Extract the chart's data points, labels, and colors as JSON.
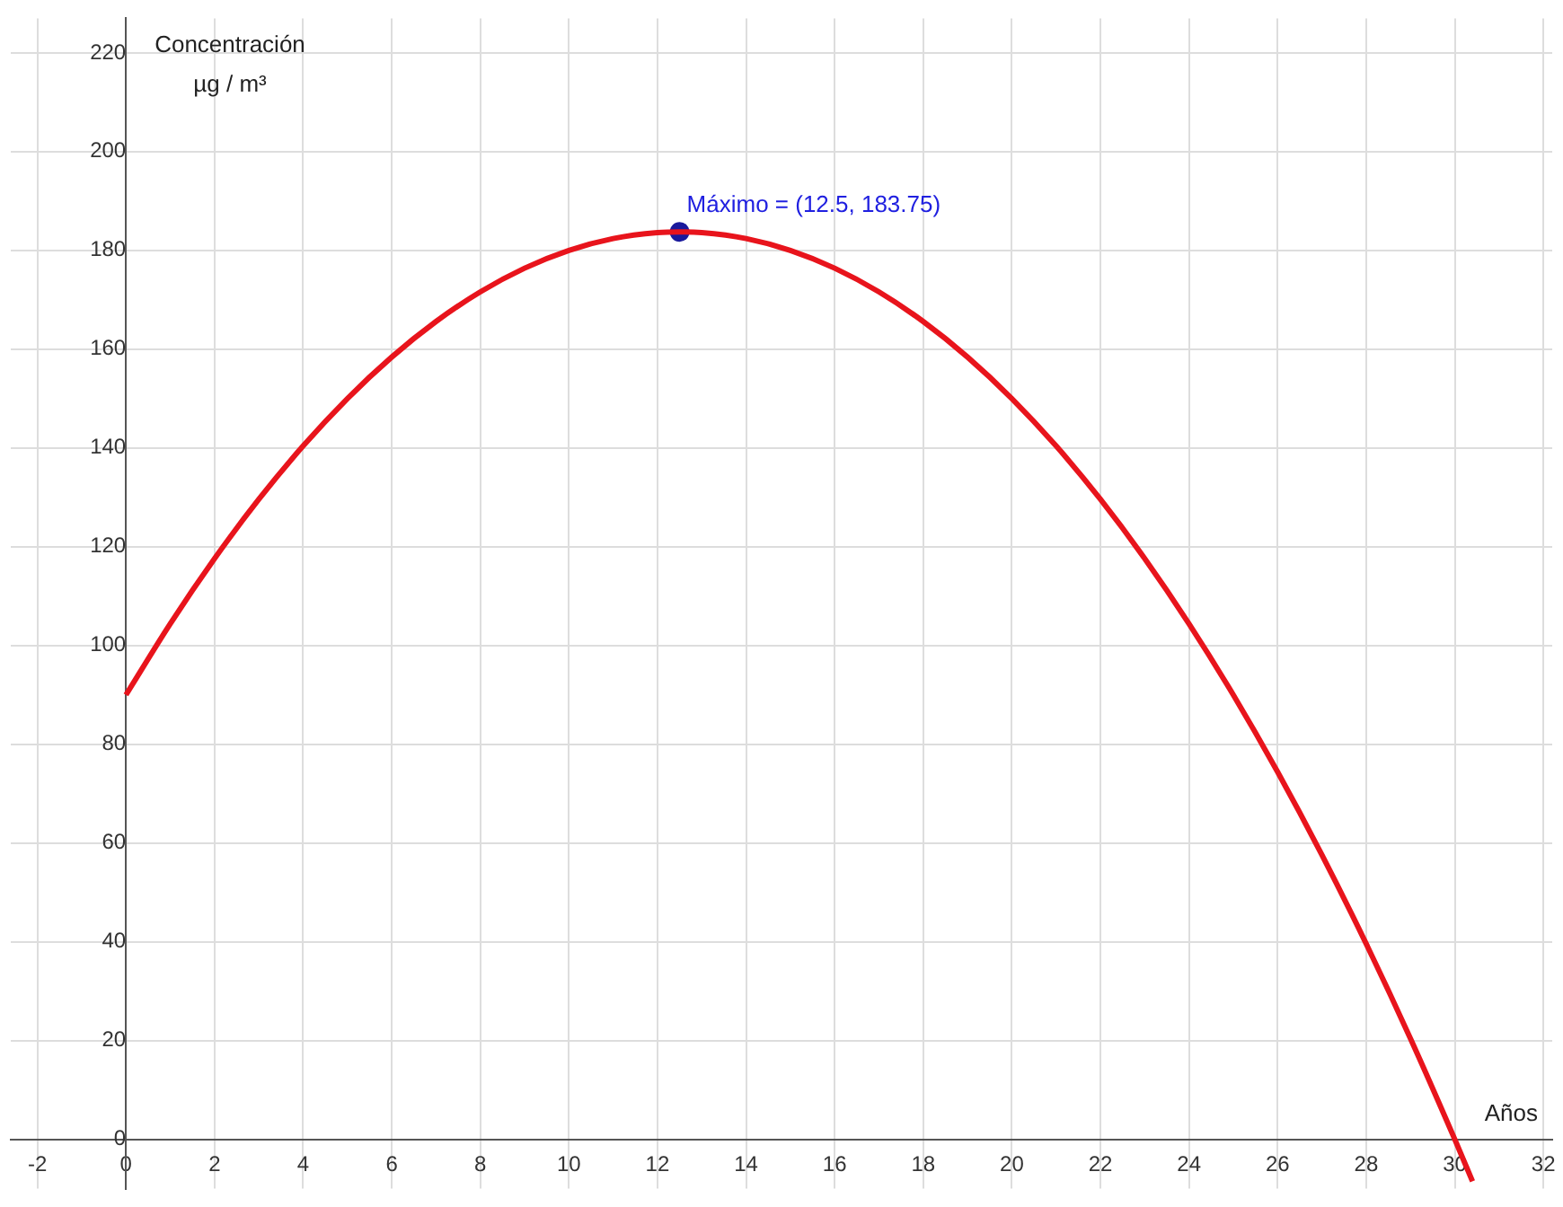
{
  "chart_data": {
    "type": "line",
    "xlabel": "Años",
    "ylabel": "Concentración µg / m³",
    "xlim": [
      -2.6,
      32.2
    ],
    "ylim": [
      -10,
      227
    ],
    "xticks": [
      -2,
      0,
      2,
      4,
      6,
      8,
      10,
      12,
      14,
      16,
      18,
      20,
      22,
      24,
      26,
      28,
      30,
      32
    ],
    "yticks": [
      0,
      20,
      40,
      60,
      80,
      100,
      120,
      140,
      160,
      180,
      200,
      220
    ],
    "grid": true,
    "legend": false,
    "series": [
      {
        "color": "#e8141c",
        "marker": "none",
        "x": [
          0,
          1,
          2,
          3,
          4,
          5,
          6,
          7,
          8,
          9,
          10,
          11,
          12,
          12.5,
          13,
          14,
          15,
          16,
          17,
          18,
          19,
          20,
          21,
          22,
          23,
          24,
          25,
          26,
          27,
          28,
          29,
          30,
          30.4
        ],
        "values": [
          90,
          104.4,
          117.6,
          129.6,
          140.4,
          150,
          158.4,
          165.6,
          171.6,
          176.4,
          180,
          182.4,
          183.6,
          183.75,
          183.6,
          182.4,
          180,
          176.4,
          171.6,
          165.6,
          158.4,
          150,
          140.4,
          129.6,
          117.6,
          104.4,
          90,
          74.4,
          57.6,
          39.6,
          20.4,
          0,
          -8.5
        ]
      },
      {
        "type": "scatter",
        "color": "#1a1a9c",
        "marker": "circle",
        "x": [
          12.5
        ],
        "values": [
          183.75
        ]
      }
    ],
    "annotations": [
      {
        "text": "Máximo = (12.5, 183.75)",
        "x": 12.5,
        "y": 183.75
      }
    ]
  }
}
